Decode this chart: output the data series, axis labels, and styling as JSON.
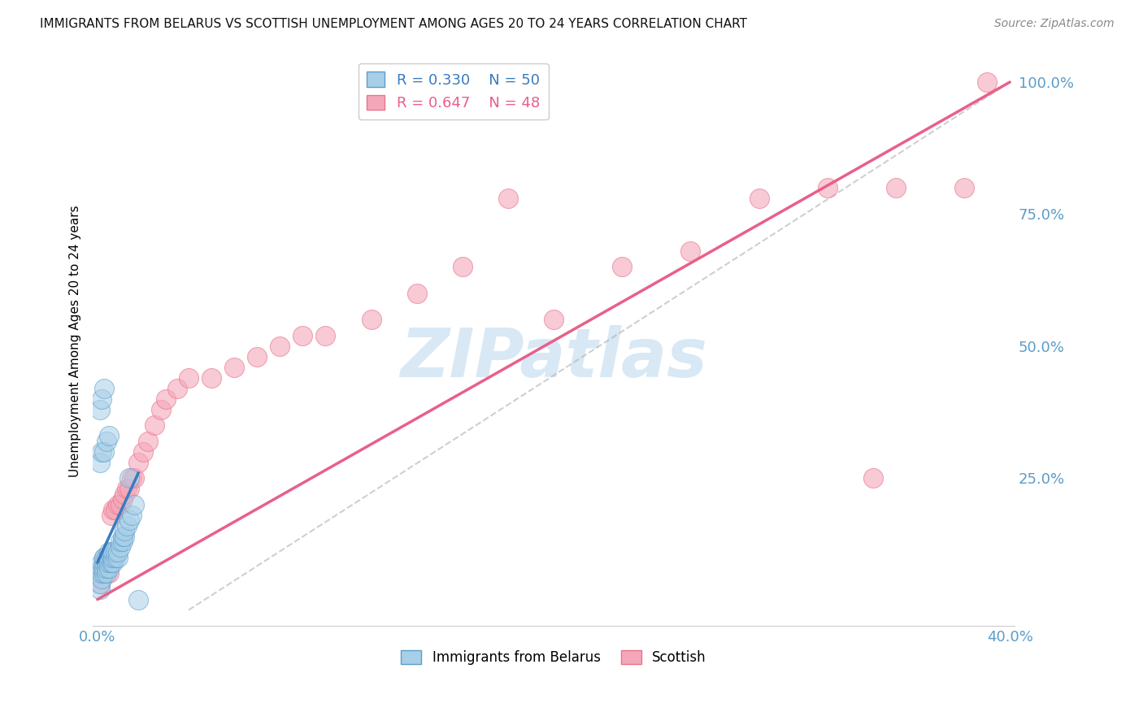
{
  "title": "IMMIGRANTS FROM BELARUS VS SCOTTISH UNEMPLOYMENT AMONG AGES 20 TO 24 YEARS CORRELATION CHART",
  "source": "Source: ZipAtlas.com",
  "ylabel": "Unemployment Among Ages 20 to 24 years",
  "xlim": [
    -0.002,
    0.402
  ],
  "ylim": [
    -0.03,
    1.05
  ],
  "xtick_positions": [
    0.0,
    0.1,
    0.2,
    0.3,
    0.4
  ],
  "xticklabels": [
    "0.0%",
    "",
    "",
    "",
    "40.0%"
  ],
  "ytick_positions": [
    0.0,
    0.25,
    0.5,
    0.75,
    1.0
  ],
  "yticklabels_right": [
    "",
    "25.0%",
    "50.0%",
    "75.0%",
    "100.0%"
  ],
  "legend_blue_label": "R = 0.330    N = 50",
  "legend_pink_label": "R = 0.647    N = 48",
  "legend_label_blue": "Immigrants from Belarus",
  "legend_label_pink": "Scottish",
  "blue_face_color": "#a8cfe8",
  "blue_edge_color": "#5b9dc9",
  "pink_face_color": "#f4a7b9",
  "pink_edge_color": "#e8748a",
  "blue_line_color": "#3a7bbf",
  "pink_line_color": "#e8608a",
  "gray_line_color": "#b0b0b0",
  "watermark_color": "#c8dff0",
  "blue_scatter_x": [
    0.001,
    0.001,
    0.001,
    0.002,
    0.002,
    0.002,
    0.002,
    0.003,
    0.003,
    0.003,
    0.003,
    0.003,
    0.004,
    0.004,
    0.004,
    0.004,
    0.005,
    0.005,
    0.005,
    0.005,
    0.006,
    0.006,
    0.006,
    0.007,
    0.007,
    0.007,
    0.008,
    0.008,
    0.009,
    0.009,
    0.01,
    0.01,
    0.011,
    0.011,
    0.012,
    0.012,
    0.013,
    0.014,
    0.015,
    0.016,
    0.001,
    0.002,
    0.003,
    0.004,
    0.005,
    0.001,
    0.002,
    0.003,
    0.014,
    0.018
  ],
  "blue_scatter_y": [
    0.07,
    0.04,
    0.05,
    0.06,
    0.07,
    0.08,
    0.09,
    0.07,
    0.08,
    0.09,
    0.1,
    0.1,
    0.07,
    0.08,
    0.09,
    0.1,
    0.08,
    0.09,
    0.1,
    0.11,
    0.09,
    0.1,
    0.11,
    0.09,
    0.1,
    0.11,
    0.1,
    0.11,
    0.1,
    0.11,
    0.12,
    0.13,
    0.13,
    0.14,
    0.14,
    0.15,
    0.16,
    0.17,
    0.18,
    0.2,
    0.28,
    0.3,
    0.3,
    0.32,
    0.33,
    0.38,
    0.4,
    0.42,
    0.25,
    0.02
  ],
  "pink_scatter_x": [
    0.001,
    0.002,
    0.002,
    0.003,
    0.003,
    0.004,
    0.004,
    0.005,
    0.005,
    0.006,
    0.006,
    0.007,
    0.008,
    0.009,
    0.01,
    0.011,
    0.012,
    0.013,
    0.014,
    0.015,
    0.016,
    0.018,
    0.02,
    0.022,
    0.025,
    0.028,
    0.03,
    0.035,
    0.04,
    0.05,
    0.06,
    0.07,
    0.08,
    0.09,
    0.1,
    0.12,
    0.14,
    0.16,
    0.18,
    0.2,
    0.23,
    0.26,
    0.29,
    0.32,
    0.35,
    0.38,
    0.34,
    0.39
  ],
  "pink_scatter_y": [
    0.05,
    0.06,
    0.08,
    0.07,
    0.09,
    0.08,
    0.1,
    0.07,
    0.1,
    0.09,
    0.18,
    0.19,
    0.19,
    0.2,
    0.2,
    0.21,
    0.22,
    0.23,
    0.23,
    0.25,
    0.25,
    0.28,
    0.3,
    0.32,
    0.35,
    0.38,
    0.4,
    0.42,
    0.44,
    0.44,
    0.46,
    0.48,
    0.5,
    0.52,
    0.52,
    0.55,
    0.6,
    0.65,
    0.78,
    0.55,
    0.65,
    0.68,
    0.78,
    0.8,
    0.8,
    0.8,
    0.25,
    1.0
  ],
  "pink_line_x0": 0.0,
  "pink_line_y0": 0.02,
  "pink_line_x1": 0.4,
  "pink_line_y1": 1.0,
  "blue_line_x0": 0.0,
  "blue_line_y0": 0.09,
  "blue_line_x1": 0.018,
  "blue_line_y1": 0.26,
  "gray_line_x0": 0.04,
  "gray_line_y0": 0.0,
  "gray_line_x1": 0.4,
  "gray_line_y1": 1.0
}
